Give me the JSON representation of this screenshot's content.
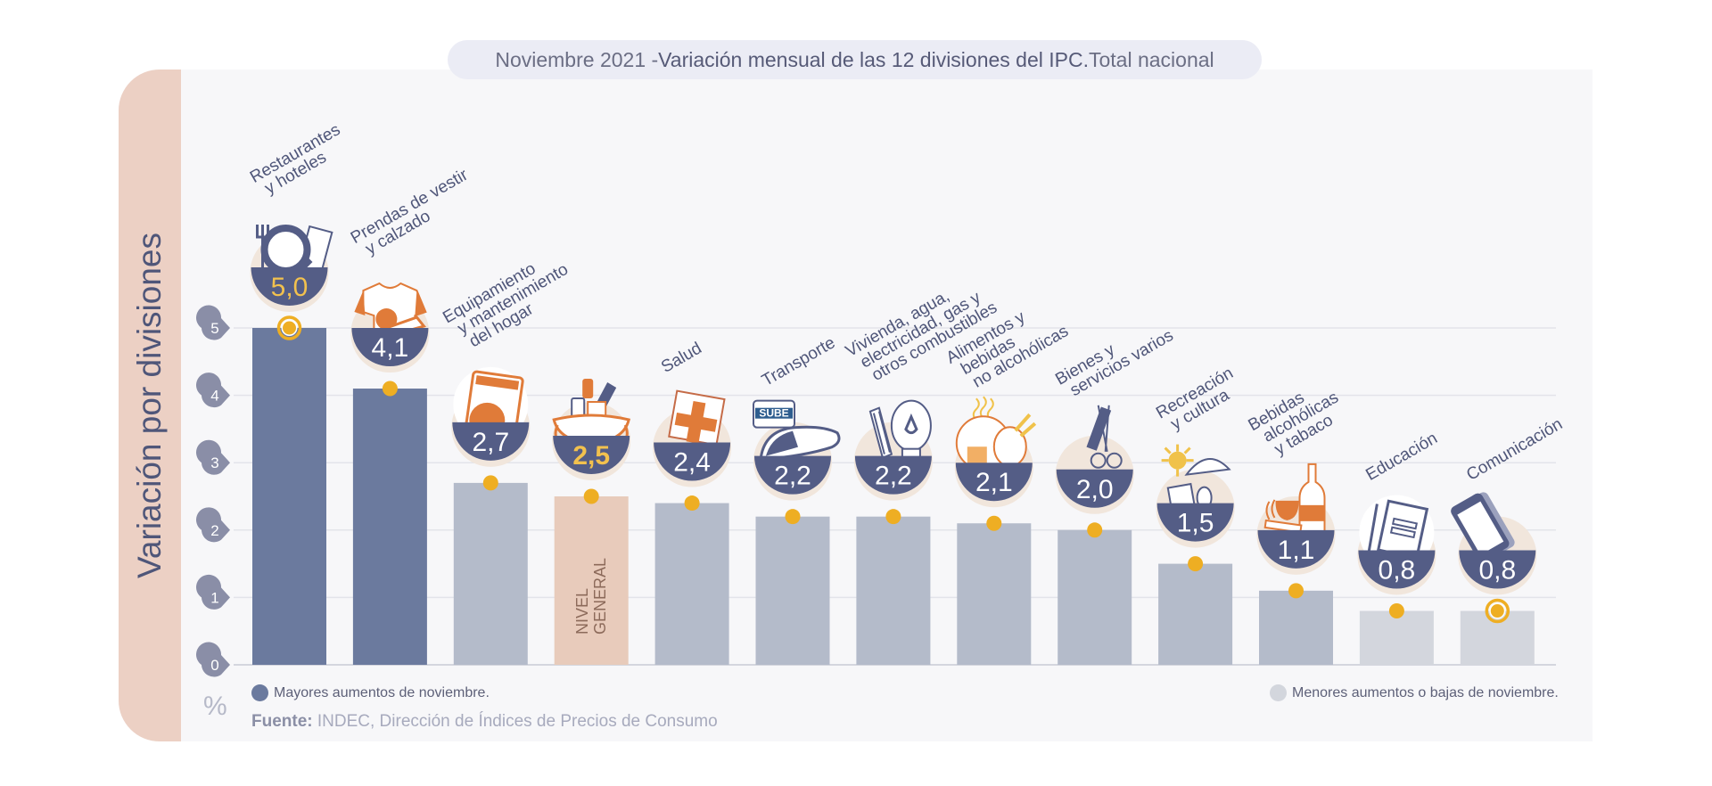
{
  "title": {
    "prefix": "Noviembre 2021 - ",
    "main": "Variación mensual de las 12 divisiones del IPC.",
    "suffix": " Total nacional"
  },
  "side_label": "Variación por divisiones",
  "unit_label": "%",
  "legend": {
    "high": "Mayores aumentos de noviembre.",
    "low": "Menores aumentos o bajas de noviembre."
  },
  "source": {
    "label": "Fuente:",
    "text": " INDEC, Dirección de Índices de Precios de Consumo"
  },
  "colors": {
    "high_bar": "#6b7a9e",
    "mid_bar": "#b4bbca",
    "low_bar": "#d3d6dd",
    "general_bar": "#e8cbbb",
    "badge": "#545d86",
    "marker": "#eeae23",
    "accent_orange": "#e07b39",
    "grid": "#e3e4ea",
    "tick_badge": "#8a8ea7"
  },
  "chart_data": {
    "type": "bar",
    "title": "Noviembre 2021 - Variación mensual de las 12 divisiones del IPC. Total nacional",
    "xlabel": "",
    "ylabel": "Variación por divisiones (%)",
    "ylim": [
      0,
      5
    ],
    "yticks": [
      0,
      1,
      2,
      3,
      4,
      5
    ],
    "grid": true,
    "legend_placement": "bottom",
    "categories": [
      "Restaurantes y hoteles",
      "Prendas de vestir y calzado",
      "Equipamiento y mantenimiento del hogar",
      "Nivel general",
      "Salud",
      "Transporte",
      "Vivienda, agua, electricidad, gas y otros combustibles",
      "Alimentos y bebidas no alcohólicas",
      "Bienes y servicios varios",
      "Recreación y cultura",
      "Bebidas alcohólicas y tabaco",
      "Educación",
      "Comunicación"
    ],
    "label_lines": [
      [
        "Restaurantes",
        "y hoteles"
      ],
      [
        "Prendas de vestir",
        "y calzado"
      ],
      [
        "Equipamiento",
        "y mantenimiento",
        "del hogar"
      ],
      [],
      [
        "Salud"
      ],
      [
        "Transporte"
      ],
      [
        "Vivienda, agua,",
        "electricidad, gas y",
        "otros combustibles"
      ],
      [
        "Alimentos y",
        "bebidas",
        "no alcohólicas"
      ],
      [
        "Bienes y",
        "servicios varios"
      ],
      [
        "Recreación",
        "y cultura"
      ],
      [
        "Bebidas",
        "alcohólicas",
        "y tabaco"
      ],
      [
        "Educación"
      ],
      [
        "Comunicación"
      ]
    ],
    "values": [
      5.0,
      4.1,
      2.7,
      2.5,
      2.4,
      2.2,
      2.2,
      2.1,
      2.0,
      1.5,
      1.1,
      0.8,
      0.8
    ],
    "value_labels": [
      "5,0",
      "4,1",
      "2,7",
      "2,5",
      "2,4",
      "2,2",
      "2,2",
      "2,1",
      "2,0",
      "1,5",
      "1,1",
      "0,8",
      "0,8"
    ],
    "groups": [
      "high",
      "high",
      "mid",
      "general",
      "mid",
      "mid",
      "mid",
      "mid",
      "mid",
      "mid",
      "mid",
      "low",
      "low"
    ],
    "icons": [
      "restaurant-icon",
      "clothing-icon",
      "washing-machine-icon",
      "shopping-bag-icon",
      "health-cross-icon",
      "car-sube-icon",
      "bulb-key-icon",
      "food-icon",
      "comb-scissors-icon",
      "recreation-icon",
      "wine-tobacco-icon",
      "notebook-icon",
      "smartphone-icon"
    ],
    "highlight_markers": [
      0,
      12
    ],
    "general_bar_label": [
      "NIVEL",
      "GENERAL"
    ]
  }
}
